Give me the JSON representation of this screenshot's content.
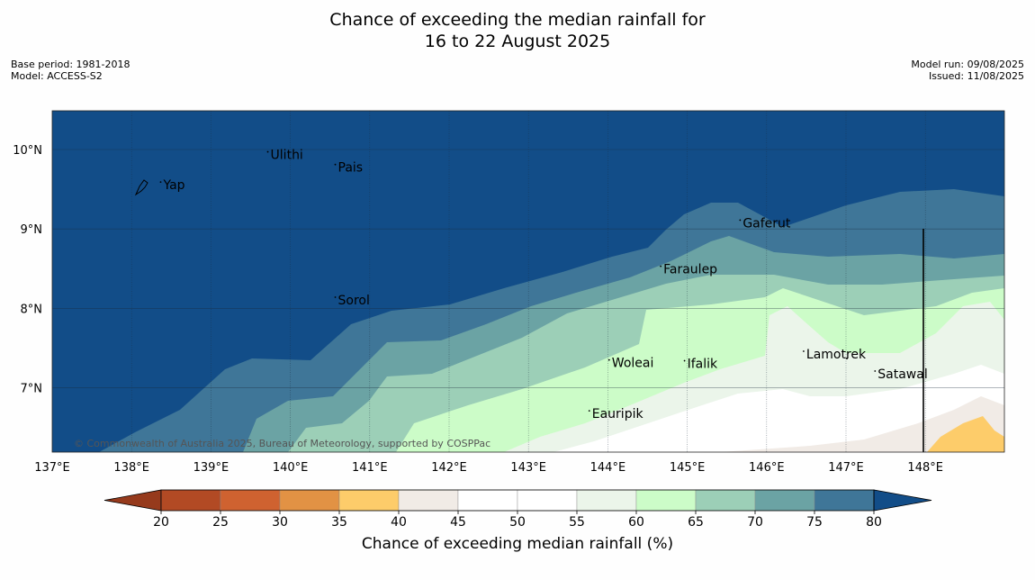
{
  "title_line1": "Chance of exceeding the median rainfall for",
  "title_line2": "16 to 22 August 2025",
  "base_period": "Base period: 1981-2018",
  "model": "Model: ACCESS-S2",
  "model_run": "Model run: 09/08/2025",
  "issued": "Issued: 11/08/2025",
  "copyright": "© Commonwealth of Australia 2025, Bureau of Meteorology, supported by COSPPac",
  "lon_labels": [
    "137°E",
    "138°E",
    "139°E",
    "140°E",
    "141°E",
    "142°E",
    "143°E",
    "144°E",
    "145°E",
    "146°E",
    "147°E",
    "148°E"
  ],
  "lat_labels": [
    "10°N",
    "9°N",
    "8°N",
    "7°N"
  ],
  "places": [
    {
      "name": "Ulithi",
      "lon": 139.75,
      "lat": 9.88
    },
    {
      "name": "Pais",
      "lon": 140.6,
      "lat": 9.72
    },
    {
      "name": "Yap",
      "lon": 138.4,
      "lat": 9.5
    },
    {
      "name": "Gaferut",
      "lon": 145.7,
      "lat": 9.02
    },
    {
      "name": "Faraulep",
      "lon": 144.7,
      "lat": 8.44
    },
    {
      "name": "Sorol",
      "lon": 140.6,
      "lat": 8.05
    },
    {
      "name": "Lamotrek",
      "lon": 146.5,
      "lat": 7.37
    },
    {
      "name": "Woleai",
      "lon": 144.05,
      "lat": 7.26
    },
    {
      "name": "Ifalik",
      "lon": 145.0,
      "lat": 7.25
    },
    {
      "name": "Satawal",
      "lon": 147.4,
      "lat": 7.12
    },
    {
      "name": "Eauripik",
      "lon": 143.8,
      "lat": 6.62
    }
  ],
  "colorbar": {
    "label": "Chance of exceeding median rainfall (%)",
    "ticks": [
      "20",
      "25",
      "30",
      "35",
      "40",
      "45",
      "50",
      "55",
      "60",
      "65",
      "70",
      "75",
      "80"
    ],
    "under_color": "#963a1c",
    "over_color": "#124d88",
    "colors": [
      "#b24a24",
      "#cf6230",
      "#e29244",
      "#fdcc6a",
      "#f1ebe6",
      "#ffffff",
      "#ffffff",
      "#ebf5ea",
      "#ccfcc8",
      "#9ccfb7",
      "#6ba3a4",
      "#3f7698"
    ]
  }
}
